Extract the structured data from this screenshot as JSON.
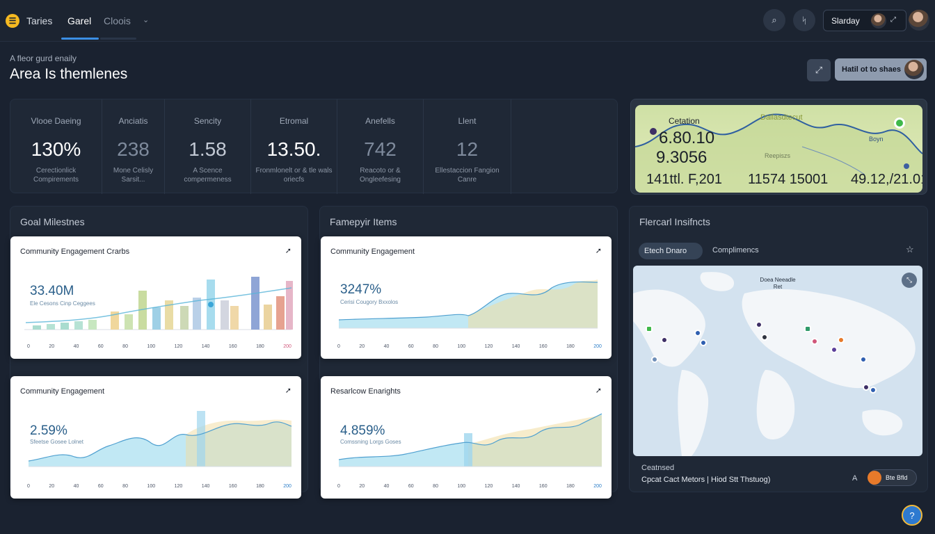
{
  "nav": {
    "tabs": [
      {
        "label": "Taries"
      },
      {
        "label": "Garel"
      },
      {
        "label": "Cloois"
      }
    ],
    "date_label": "Slarday"
  },
  "header": {
    "subtitle": "A fleor gurd enaily",
    "title": "Area Is themlenes",
    "primary_button": "Hatil ot to shaes"
  },
  "kpis": [
    {
      "label": "Vlooe Daeing",
      "value": "130%",
      "desc": "Cerectionlick Compirements"
    },
    {
      "label": "Anciatis",
      "value": "238",
      "desc": "Mone Celisly Sarsit..."
    },
    {
      "label": "Sencity",
      "value": "1.58",
      "desc": "A Scence compermeness"
    },
    {
      "label": "Etromal",
      "value": "13.50.",
      "desc": "Fronmlonelt or & tle wals oriecfs"
    },
    {
      "label": "Anefells",
      "value": "742",
      "desc": "Reacoto or & Ongleefesing"
    },
    {
      "label": "Llent",
      "value": "12",
      "desc": "Ellestaccion Fangion Canre"
    }
  ],
  "location": {
    "title": "Cetation",
    "big1": "6.80.10",
    "big2": "9.3056",
    "map_label": "Dallasdtecut",
    "inner_label": "Reepiszs",
    "side_label": "Boyn",
    "bottom": [
      "141ttl. F,201",
      "11574 15001",
      "49.12,/21.01"
    ]
  },
  "panels": {
    "goal": {
      "title": "Goal Milestnes"
    },
    "feature": {
      "title": "Famepyir Items"
    },
    "insights": {
      "title": "Flercarl Insifncts"
    }
  },
  "cards": [
    {
      "title": "Community Engagement Crarbs",
      "value": "33.40M",
      "sub": "Ele Cesons Cinp Ceggees",
      "ticks": [
        "0",
        "20",
        "40",
        "60",
        "80",
        "100",
        "120",
        "140",
        "160",
        "180",
        "200"
      ]
    },
    {
      "title": "Community Engagement",
      "value": "3247%",
      "sub": "Cerisi Cougory Bxxolos",
      "ticks": [
        "0",
        "20",
        "40",
        "60",
        "80",
        "100",
        "120",
        "140",
        "160",
        "180",
        "200"
      ]
    },
    {
      "title": "Community Engagement",
      "value": "2.59%",
      "sub": "Sfeetse Gosee Lolnet",
      "ticks": [
        "0",
        "20",
        "40",
        "60",
        "80",
        "100",
        "120",
        "140",
        "160",
        "180",
        "200"
      ]
    },
    {
      "title": "Resarlcow Enarights",
      "value": "4.859%",
      "sub": "Comssning Lorgs Goses",
      "ticks": [
        "0",
        "20",
        "40",
        "60",
        "80",
        "100",
        "120",
        "140",
        "160",
        "180",
        "200"
      ]
    }
  ],
  "insights": {
    "chip1": "Etech Dnaro",
    "chip2": "Complimencs",
    "map_label": "Doea Neeadle Ret",
    "footer_label": "Ceatnsed",
    "footer_line": "Cpcat Cact Metors | Hiod Stt Thstuog)",
    "footer_a": "A",
    "toggle_label": "Bte Bfld"
  },
  "icons": {
    "logo": "menu-icon",
    "search": "search-icon",
    "tools": "tools-icon",
    "share": "expand-icon",
    "card_arrow": "arrow-up-icon",
    "star": "star-icon",
    "map_ctrl": "compress-icon",
    "fab": "help-icon"
  },
  "colors": {
    "background": "#1a2230",
    "accent": "#3b8fe4",
    "logo": "#f5b921"
  }
}
